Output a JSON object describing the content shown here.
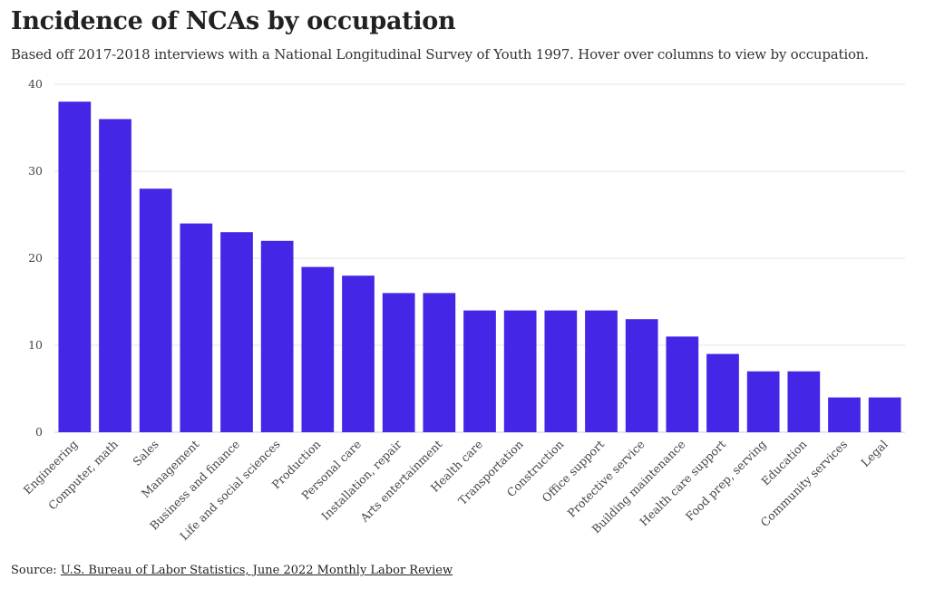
{
  "title": "Incidence of NCAs by occupation",
  "subtitle": "Based off 2017-2018 interviews with a National Longitudinal Survey of Youth 1997. Hover over columns to view by occupation.",
  "source": {
    "prefix": "Source: ",
    "link_text": "U.S. Bureau of Labor Statistics, June 2022 Monthly Labor Review"
  },
  "colors": {
    "bar": "#4427e6"
  },
  "chart_data": {
    "type": "bar",
    "title": "Incidence of NCAs by occupation",
    "xlabel": "",
    "ylabel": "",
    "ylim": [
      0,
      40
    ],
    "yticks": [
      0,
      10,
      20,
      30,
      40
    ],
    "grid": true,
    "categories": [
      "Engineering",
      "Computer, math",
      "Sales",
      "Management",
      "Business and finance",
      "Life and social sciences",
      "Production",
      "Personal care",
      "Installation, repair",
      "Arts entertainment",
      "Health care",
      "Transportation",
      "Construction",
      "Office support",
      "Protective service",
      "Building maintenance",
      "Health care support",
      "Food prep, serving",
      "Education",
      "Community services",
      "Legal"
    ],
    "values": [
      38,
      36,
      28,
      24,
      23,
      22,
      19,
      18,
      16,
      16,
      14,
      14,
      14,
      14,
      13,
      11,
      9,
      7,
      7,
      4,
      4
    ]
  }
}
